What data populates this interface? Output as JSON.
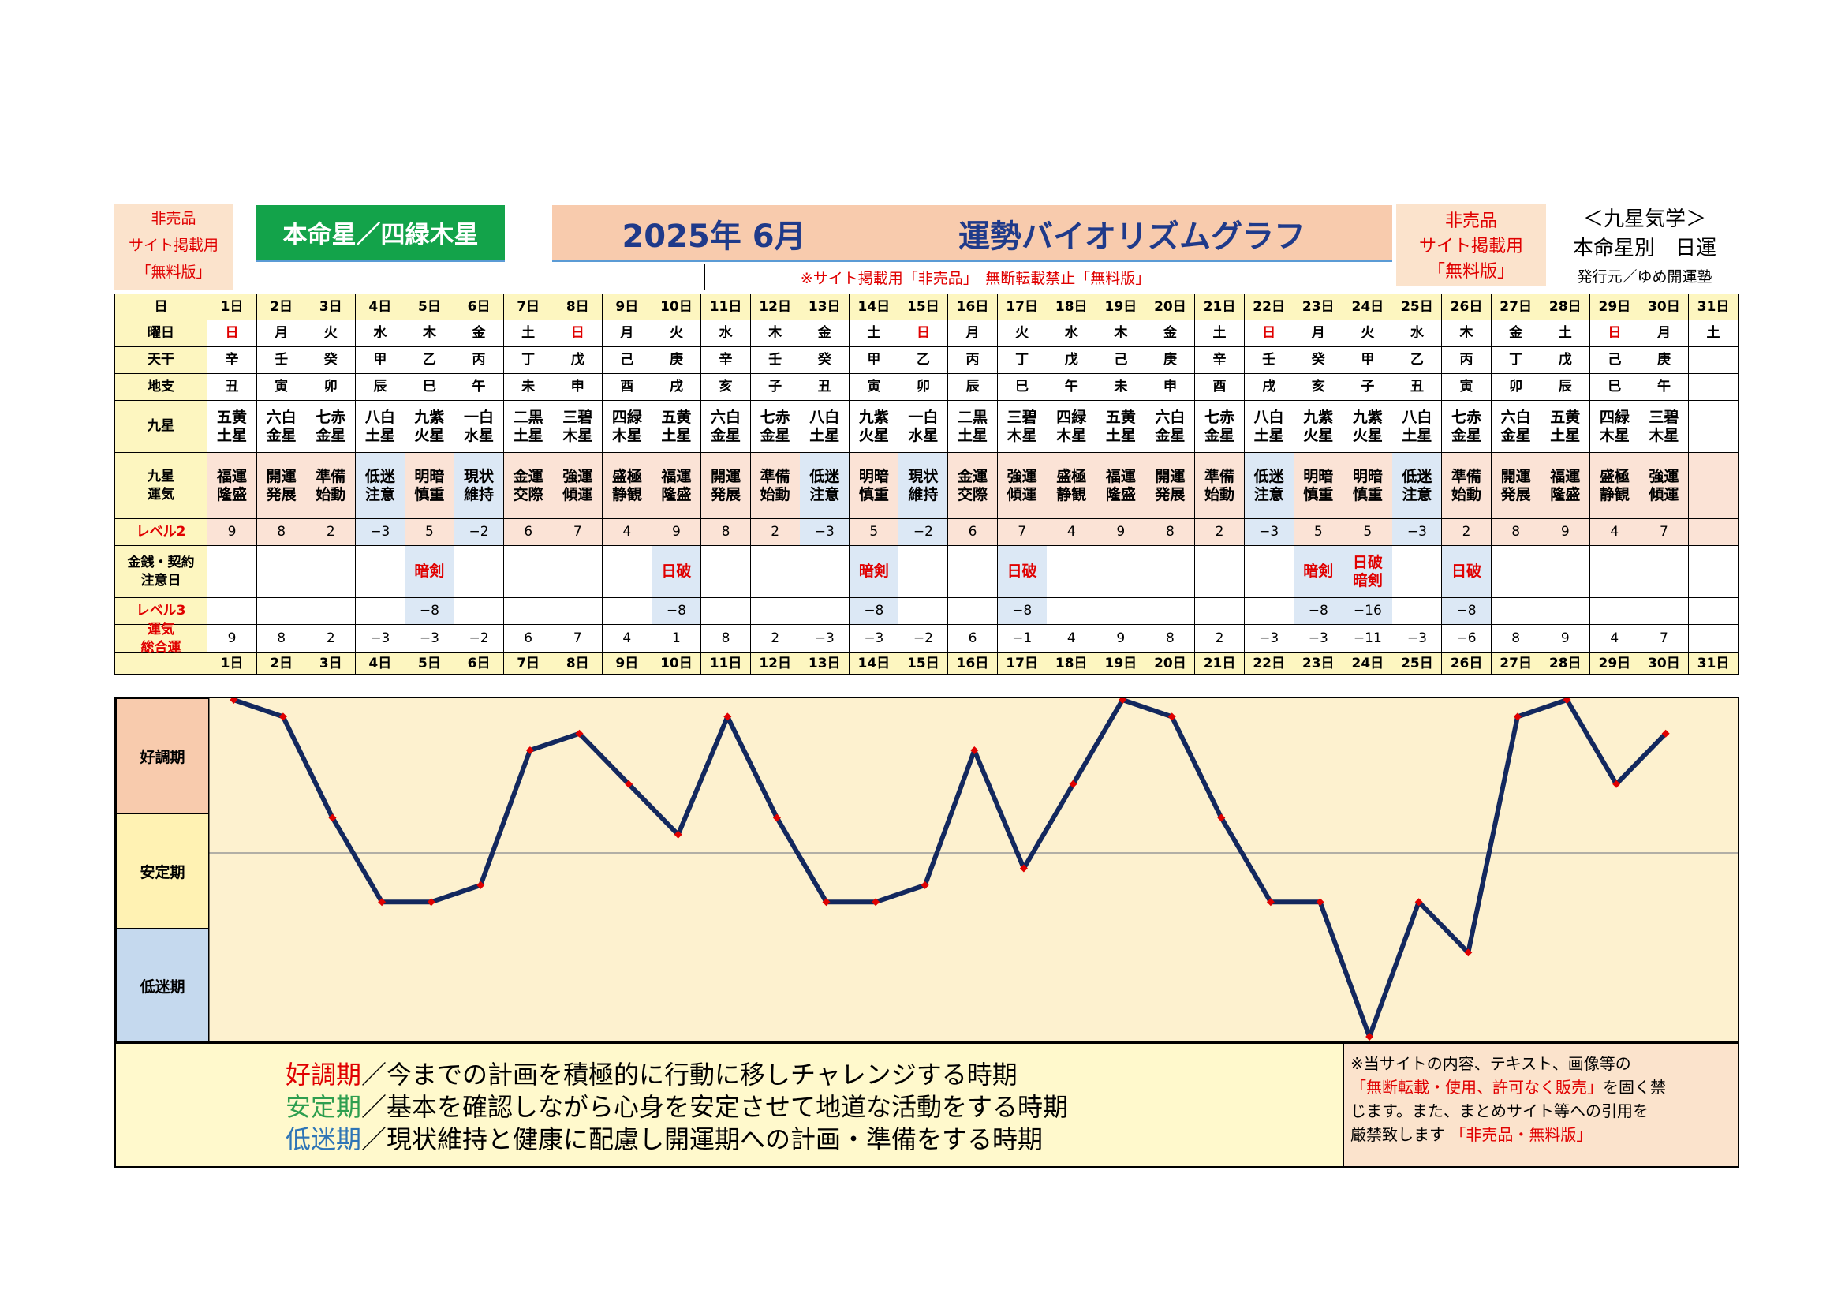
{
  "header": {
    "left_notice": [
      "非売品",
      "サイト掲載用",
      "「無料版」"
    ],
    "star_title": "本命星／四緑木星",
    "main_title_year_month": "2025年 6月",
    "main_title_text": "運勢バイオリズムグラフ",
    "sub_notice": "※サイト掲載用「非売品」　無断転載禁止「無料版」",
    "right_notice": [
      "非売品",
      "サイト掲載用",
      "「無料版」"
    ],
    "right_title_1": "＜九星気学＞",
    "right_title_2": "本命星別　日運",
    "publisher": "発行元／ゆめ開運塾"
  },
  "row_labels": {
    "day": "日",
    "weekday": "曜日",
    "tenkan": "天干",
    "chishi": "地支",
    "kyusei": "九星",
    "kyusei_unki": "九星\n運気",
    "level2": "レベル2",
    "money_caution": "金銭・契約\n注意日",
    "level3": "レベル3",
    "total": "運気\n総合運"
  },
  "colors": {
    "line": "#13285e",
    "marker": "#e00000",
    "good_band": "#f8cbad",
    "stable_band": "#fff2b3",
    "low_band": "#c5d9ee",
    "chart_bg": "#fdf1cf",
    "star_title_bg": "#13a34a",
    "title_bar_bg": "#f8cbad",
    "title_text": "#1f3a8a"
  },
  "days": [
    "1日",
    "2日",
    "3日",
    "4日",
    "5日",
    "6日",
    "7日",
    "8日",
    "9日",
    "10日",
    "11日",
    "12日",
    "13日",
    "14日",
    "15日",
    "16日",
    "17日",
    "18日",
    "19日",
    "20日",
    "21日",
    "22日",
    "23日",
    "24日",
    "25日",
    "26日",
    "27日",
    "28日",
    "29日",
    "30日",
    "31日"
  ],
  "weekdays": [
    "日",
    "月",
    "火",
    "水",
    "木",
    "金",
    "土",
    "日",
    "月",
    "火",
    "水",
    "木",
    "金",
    "土",
    "日",
    "月",
    "火",
    "水",
    "木",
    "金",
    "土",
    "日",
    "月",
    "火",
    "水",
    "木",
    "金",
    "土",
    "日",
    "月",
    "土"
  ],
  "tenkan": [
    "辛",
    "壬",
    "癸",
    "甲",
    "乙",
    "丙",
    "丁",
    "戊",
    "己",
    "庚",
    "辛",
    "壬",
    "癸",
    "甲",
    "乙",
    "丙",
    "丁",
    "戊",
    "己",
    "庚",
    "辛",
    "壬",
    "癸",
    "甲",
    "乙",
    "丙",
    "丁",
    "戊",
    "己",
    "庚",
    ""
  ],
  "chishi": [
    "丑",
    "寅",
    "卯",
    "辰",
    "巳",
    "午",
    "未",
    "申",
    "酉",
    "戌",
    "亥",
    "子",
    "丑",
    "寅",
    "卯",
    "辰",
    "巳",
    "午",
    "未",
    "申",
    "酉",
    "戌",
    "亥",
    "子",
    "丑",
    "寅",
    "卯",
    "辰",
    "巳",
    "午",
    ""
  ],
  "kyusei": [
    "五黄\n土星",
    "六白\n金星",
    "七赤\n金星",
    "八白\n土星",
    "九紫\n火星",
    "一白\n水星",
    "二黒\n土星",
    "三碧\n木星",
    "四緑\n木星",
    "五黄\n土星",
    "六白\n金星",
    "七赤\n金星",
    "八白\n土星",
    "九紫\n火星",
    "一白\n水星",
    "二黒\n土星",
    "三碧\n木星",
    "四緑\n木星",
    "五黄\n土星",
    "六白\n金星",
    "七赤\n金星",
    "八白\n土星",
    "九紫\n火星",
    "九紫\n火星",
    "八白\n土星",
    "七赤\n金星",
    "六白\n金星",
    "五黄\n土星",
    "四緑\n木星",
    "三碧\n木星",
    ""
  ],
  "kyusei_unki": [
    "福運\n隆盛",
    "開運\n発展",
    "準備\n始動",
    "低迷\n注意",
    "明暗\n慎重",
    "現状\n維持",
    "金運\n交際",
    "強運\n傾運",
    "盛極\n静観",
    "福運\n隆盛",
    "開運\n発展",
    "準備\n始動",
    "低迷\n注意",
    "明暗\n慎重",
    "現状\n維持",
    "金運\n交際",
    "強運\n傾運",
    "盛極\n静観",
    "福運\n隆盛",
    "開運\n発展",
    "準備\n始動",
    "低迷\n注意",
    "明暗\n慎重",
    "明暗\n慎重",
    "低迷\n注意",
    "準備\n始動",
    "開運\n発展",
    "福運\n隆盛",
    "盛極\n静観",
    "強運\n傾運",
    ""
  ],
  "level2": [
    "9",
    "8",
    "2",
    "−3",
    "5",
    "−2",
    "6",
    "7",
    "4",
    "9",
    "8",
    "2",
    "−3",
    "5",
    "−2",
    "6",
    "7",
    "4",
    "9",
    "8",
    "2",
    "−3",
    "5",
    "5",
    "−3",
    "2",
    "8",
    "9",
    "4",
    "7",
    ""
  ],
  "money_caution": [
    "",
    "",
    "",
    "",
    "暗剣",
    "",
    "",
    "",
    "",
    "日破",
    "",
    "",
    "",
    "暗剣",
    "",
    "",
    "日破",
    "",
    "",
    "",
    "",
    "",
    "暗剣",
    "日破\n暗剣",
    "",
    "日破",
    "",
    "",
    "",
    "",
    ""
  ],
  "level3": [
    "",
    "",
    "",
    "",
    "−8",
    "",
    "",
    "",
    "",
    "−8",
    "",
    "",
    "",
    "−8",
    "",
    "",
    "−8",
    "",
    "",
    "",
    "",
    "",
    "−8",
    "−16",
    "",
    "−8",
    "",
    "",
    "",
    "",
    ""
  ],
  "total_display": [
    "9",
    "8",
    "2",
    "−3",
    "−3",
    "−2",
    "6",
    "7",
    "4",
    "1",
    "8",
    "2",
    "−3",
    "−3",
    "−2",
    "6",
    "−1",
    "4",
    "9",
    "8",
    "2",
    "−3",
    "−3",
    "−11",
    "−3",
    "−6",
    "8",
    "9",
    "4",
    "7",
    ""
  ],
  "chart_data": {
    "type": "line",
    "x": [
      "1日",
      "2日",
      "3日",
      "4日",
      "5日",
      "6日",
      "7日",
      "8日",
      "9日",
      "10日",
      "11日",
      "12日",
      "13日",
      "14日",
      "15日",
      "16日",
      "17日",
      "18日",
      "19日",
      "20日",
      "21日",
      "22日",
      "23日",
      "24日",
      "25日",
      "26日",
      "27日",
      "28日",
      "29日",
      "30日"
    ],
    "values": [
      9,
      8,
      2,
      -3,
      -3,
      -2,
      6,
      7,
      4,
      1,
      8,
      2,
      -3,
      -3,
      -2,
      6,
      -1,
      4,
      9,
      8,
      2,
      -3,
      -3,
      -11,
      -3,
      -6,
      8,
      9,
      4,
      7
    ],
    "ylim": [
      -11,
      9
    ],
    "bands": [
      "好調期",
      "安定期",
      "低迷期"
    ]
  },
  "legend": {
    "good_term": "好調期",
    "good_text": "／今までの計画を積極的に行動に移しチャレンジする時期",
    "stable_term": "安定期",
    "stable_text": "／基本を確認しながら心身を安定させて地道な活動をする時期",
    "low_term": "低迷期",
    "low_text": "／現状維持と健康に配慮し開運期への計画・準備をする時期"
  },
  "disclaimer": {
    "line1": "※当サイトの内容、テキスト、画像等の",
    "line2_red": "「無断転載・使用、許可なく販売」",
    "line2_black": "を固く禁",
    "line3": "じます。また、まとめサイト等への引用を",
    "line4_black": "厳禁致します",
    "line4_red": "「非売品・無料版」"
  }
}
